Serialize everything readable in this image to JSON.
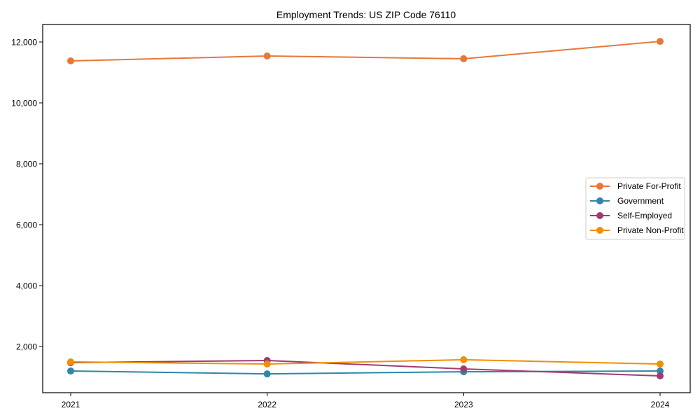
{
  "chart_data": {
    "type": "line",
    "title": "Employment Trends: US ZIP Code 76110",
    "xlabel": "",
    "ylabel": "",
    "categories": [
      "2021",
      "2022",
      "2023",
      "2024"
    ],
    "ylim": [
      483,
      12575
    ],
    "yticks": [
      2000,
      4000,
      6000,
      8000,
      10000,
      12000
    ],
    "ytick_labels": [
      "2,000",
      "4,000",
      "6,000",
      "8,000",
      "10,000",
      "12,000"
    ],
    "grid": false,
    "legend_position": "center right",
    "series": [
      {
        "name": "Private For-Profit",
        "color": "#E8773A",
        "values": [
          11380,
          11540,
          11450,
          12020
        ]
      },
      {
        "name": "Government",
        "color": "#2E86AB",
        "values": [
          1195,
          1100,
          1170,
          1195
        ]
      },
      {
        "name": "Self-Employed",
        "color": "#A23B72",
        "values": [
          1470,
          1540,
          1265,
          1035
        ]
      },
      {
        "name": "Private Non-Profit",
        "color": "#F18F01",
        "values": [
          1495,
          1425,
          1565,
          1425
        ]
      }
    ]
  }
}
